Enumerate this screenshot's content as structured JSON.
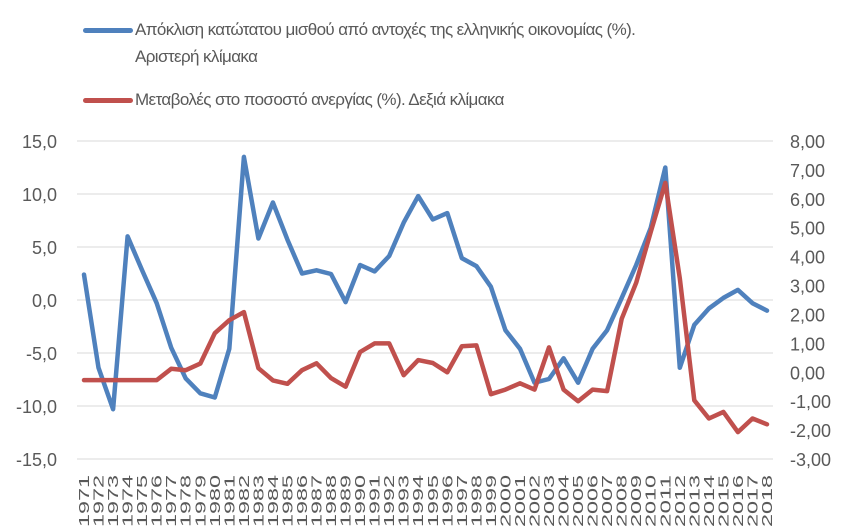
{
  "legend": {
    "series": [
      {
        "name_line1": "Απόκλιση κατώτατου μισθού από αντοχές της ελληνικής οικονομίας (%).",
        "name_line2": "Αριστερή κλίμακα",
        "color": "#4F81BD"
      },
      {
        "name_line1": "Μεταβολές στο ποσοστό ανεργίας (%). Δεξιά κλίμακα",
        "color": "#C0504D"
      }
    ]
  },
  "chart_data": {
    "type": "line",
    "title": "",
    "xlabel": "",
    "ylabel": "",
    "y2label": "",
    "legend_position": "top",
    "grid": true,
    "x": [
      1971,
      1972,
      1973,
      1974,
      1975,
      1976,
      1977,
      1978,
      1979,
      1980,
      1981,
      1982,
      1983,
      1984,
      1985,
      1986,
      1987,
      1988,
      1989,
      1990,
      1991,
      1992,
      1993,
      1994,
      1995,
      1996,
      1997,
      1998,
      1999,
      2000,
      2001,
      2002,
      2003,
      2004,
      2005,
      2006,
      2007,
      2008,
      2009,
      2010,
      2011,
      2012,
      2013,
      2014,
      2015,
      2016,
      2017,
      2018
    ],
    "y_left": {
      "range": [
        -15,
        15
      ],
      "step": 5,
      "tick_labels": [
        "15,0",
        "10,0",
        "5,0",
        "0,0",
        "-5,0",
        "-10,0",
        "-15,0"
      ]
    },
    "y_right": {
      "range": [
        -3,
        8
      ],
      "step": 1,
      "tick_labels": [
        "8,00",
        "7,00",
        "6,00",
        "5,00",
        "4,00",
        "3,00",
        "2,00",
        "1,00",
        "0,00",
        "-1,00",
        "-2,00",
        "-3,00"
      ]
    },
    "series": [
      {
        "name": "Απόκλιση κατώτατου μισθού από αντοχές της ελληνικής οικονομίας (%). Αριστερή κλίμακα",
        "axis": "left",
        "color": "#4F81BD",
        "values": [
          2.4,
          -6.4,
          -10.3,
          6.0,
          2.8,
          -0.3,
          -4.5,
          -7.4,
          -8.8,
          -9.2,
          -4.6,
          13.5,
          5.8,
          9.2,
          5.7,
          2.5,
          2.8,
          2.45,
          -0.2,
          3.3,
          2.7,
          4.15,
          7.3,
          9.8,
          7.6,
          8.2,
          3.95,
          3.2,
          1.25,
          -2.85,
          -4.6,
          -7.8,
          -7.45,
          -5.5,
          -7.8,
          -4.6,
          -2.85,
          0.2,
          3.3,
          6.8,
          12.5,
          -6.4,
          -2.35,
          -0.8,
          0.2,
          0.95,
          -0.3,
          -1.0
        ]
      },
      {
        "name": "Μεταβολές στο ποσοστό ανεργίας (%). Δεξιά κλίμακα",
        "axis": "right",
        "color": "#C0504D",
        "values": [
          -0.27,
          -0.27,
          -0.27,
          -0.27,
          -0.27,
          -0.27,
          0.12,
          0.07,
          0.3,
          1.35,
          1.8,
          2.08,
          0.14,
          -0.28,
          -0.4,
          0.07,
          0.31,
          -0.2,
          -0.5,
          0.7,
          1.0,
          1.0,
          -0.1,
          0.42,
          0.32,
          0.0,
          0.9,
          0.93,
          -0.76,
          -0.6,
          -0.38,
          -0.6,
          0.86,
          -0.6,
          -1.0,
          -0.6,
          -0.65,
          1.85,
          3.1,
          4.85,
          6.55,
          3.25,
          -0.97,
          -1.6,
          -1.37,
          -2.07,
          -1.6,
          -1.8
        ]
      }
    ]
  }
}
